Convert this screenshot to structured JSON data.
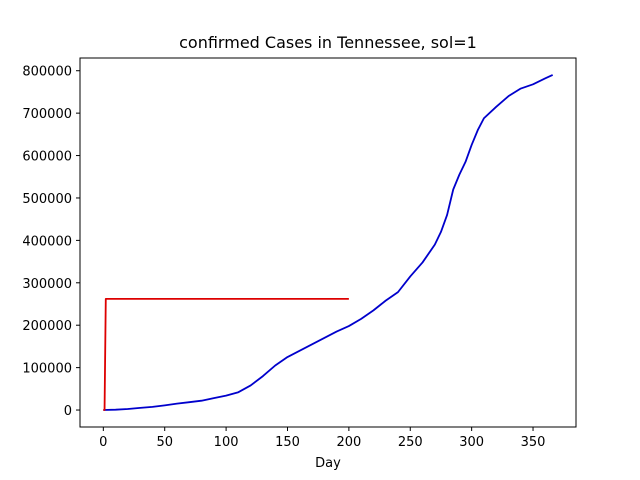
{
  "chart_data": {
    "type": "line",
    "title": "confirmed Cases in Tennessee, sol=1",
    "xlabel": "Day",
    "ylabel": "",
    "xlim": [
      -19,
      385
    ],
    "ylim": [
      -40000,
      830000
    ],
    "x_ticks": [
      0,
      50,
      100,
      150,
      200,
      250,
      300,
      350
    ],
    "y_ticks": [
      0,
      100000,
      200000,
      300000,
      400000,
      500000,
      600000,
      700000,
      800000
    ],
    "grid": false,
    "series": [
      {
        "color": "#0000cc",
        "points": [
          [
            0,
            0
          ],
          [
            10,
            800
          ],
          [
            20,
            2500
          ],
          [
            30,
            5000
          ],
          [
            40,
            7500
          ],
          [
            50,
            11000
          ],
          [
            60,
            15000
          ],
          [
            70,
            18500
          ],
          [
            80,
            22000
          ],
          [
            90,
            28000
          ],
          [
            100,
            34000
          ],
          [
            110,
            42000
          ],
          [
            120,
            58000
          ],
          [
            130,
            80000
          ],
          [
            140,
            105000
          ],
          [
            150,
            125000
          ],
          [
            160,
            140000
          ],
          [
            170,
            155000
          ],
          [
            180,
            170000
          ],
          [
            190,
            185000
          ],
          [
            200,
            198000
          ],
          [
            210,
            215000
          ],
          [
            220,
            235000
          ],
          [
            230,
            258000
          ],
          [
            240,
            278000
          ],
          [
            250,
            315000
          ],
          [
            260,
            348000
          ],
          [
            270,
            390000
          ],
          [
            275,
            420000
          ],
          [
            280,
            460000
          ],
          [
            285,
            520000
          ],
          [
            290,
            555000
          ],
          [
            295,
            585000
          ],
          [
            300,
            625000
          ],
          [
            305,
            660000
          ],
          [
            310,
            688000
          ],
          [
            320,
            715000
          ],
          [
            330,
            740000
          ],
          [
            340,
            758000
          ],
          [
            350,
            768000
          ],
          [
            360,
            782000
          ],
          [
            366,
            790000
          ]
        ]
      },
      {
        "color": "#dd0000",
        "points": [
          [
            0,
            0
          ],
          [
            1,
            0
          ],
          [
            2,
            262000
          ],
          [
            5,
            262000
          ],
          [
            200,
            262000
          ]
        ]
      }
    ]
  }
}
